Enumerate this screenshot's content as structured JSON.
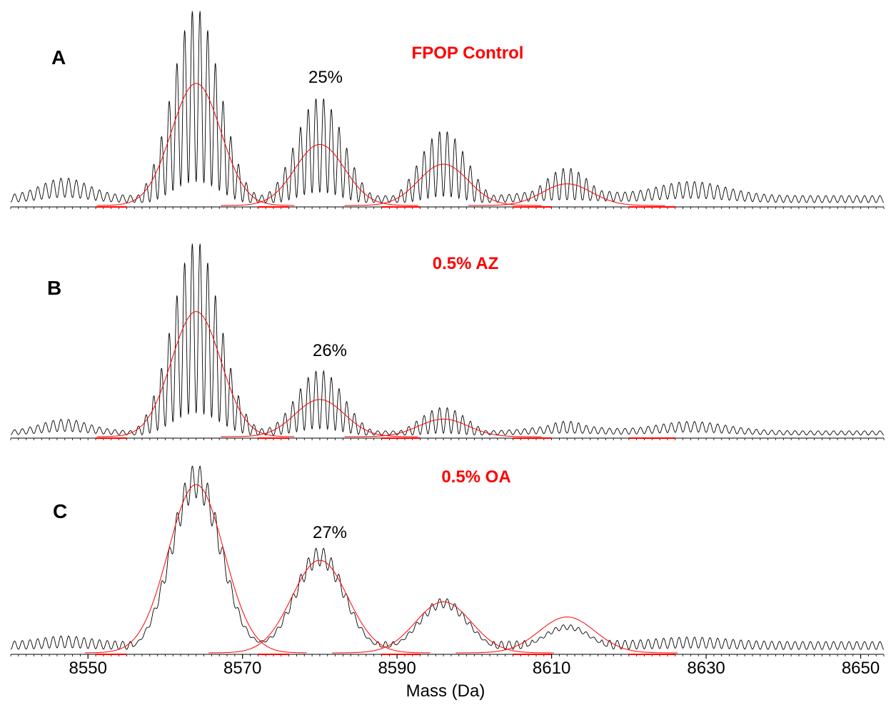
{
  "chart_data": [
    {
      "type": "line",
      "panel": "A",
      "title": "FPOP Control",
      "annotation": "25%",
      "xlim": [
        8540,
        8653
      ],
      "peaks": [
        {
          "mass": 8564,
          "height": 1.0
        },
        {
          "mass": 8580,
          "height": 0.55
        },
        {
          "mass": 8596,
          "height": 0.38
        },
        {
          "mass": 8612,
          "height": 0.19
        }
      ],
      "fits": [
        {
          "mass": 8564,
          "height": 0.62
        },
        {
          "mass": 8580,
          "height": 0.31
        },
        {
          "mass": 8596,
          "height": 0.21
        },
        {
          "mass": 8612,
          "height": 0.11
        }
      ],
      "colors": {
        "spectrum": "#000000",
        "fit": "#ff0000",
        "label": "#ff0000"
      }
    },
    {
      "type": "line",
      "panel": "B",
      "title": "0.5% AZ",
      "annotation": "26%",
      "xlim": [
        8540,
        8653
      ],
      "peaks": [
        {
          "mass": 8564,
          "height": 1.0
        },
        {
          "mass": 8580,
          "height": 0.34
        },
        {
          "mass": 8596,
          "height": 0.15
        },
        {
          "mass": 8612,
          "height": 0.08
        }
      ],
      "fits": [
        {
          "mass": 8564,
          "height": 0.64
        },
        {
          "mass": 8580,
          "height": 0.19
        },
        {
          "mass": 8596,
          "height": 0.09
        }
      ],
      "colors": {
        "spectrum": "#000000",
        "fit": "#ff0000",
        "label": "#ff0000"
      }
    },
    {
      "type": "line",
      "panel": "C",
      "title": "0.5% OA",
      "annotation": "27%",
      "xlim": [
        8540,
        8653
      ],
      "peaks": [
        {
          "mass": 8564,
          "height": 1.0
        },
        {
          "mass": 8580,
          "height": 0.56
        },
        {
          "mass": 8596,
          "height": 0.29
        },
        {
          "mass": 8612,
          "height": 0.15
        }
      ],
      "fits": [
        {
          "mass": 8564,
          "height": 0.89
        },
        {
          "mass": 8580,
          "height": 0.49
        },
        {
          "mass": 8596,
          "height": 0.27
        },
        {
          "mass": 8612,
          "height": 0.19
        }
      ],
      "colors": {
        "spectrum": "#000000",
        "fit": "#ff0000",
        "label": "#ff0000"
      }
    }
  ],
  "axis": {
    "xlabel": "Mass (Da)",
    "ticks": [
      8550,
      8570,
      8590,
      8610,
      8630,
      8650
    ]
  }
}
